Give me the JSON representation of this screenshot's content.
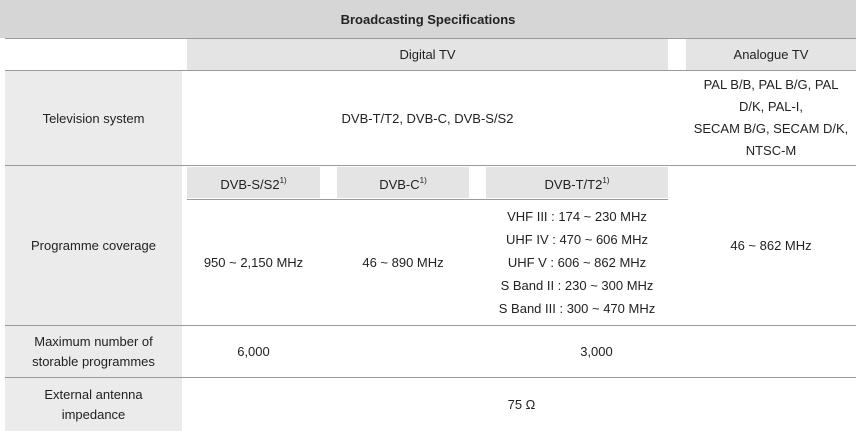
{
  "header": {
    "title": "Broadcasting Specifications"
  },
  "column_headers": [
    "Digital TV",
    "Analogue TV"
  ],
  "sub_headers": [
    {
      "name": "DVB-S/S2",
      "note": "1)"
    },
    {
      "name": "DVB-C",
      "note": "1)"
    },
    {
      "name": "DVB-T/T2",
      "note": "1)"
    }
  ],
  "rows": [
    {
      "label": "Television system",
      "digital": "DVB-T/T2, DVB-C, DVB-S/S2",
      "analogue": [
        "PAL B/B, PAL B/G, PAL",
        "D/K, PAL-I,",
        "SECAM B/G, SECAM D/K,",
        "NTSC-M"
      ]
    },
    {
      "label": "Programme coverage",
      "dvb_s_s2": "950 ~ 2,150 MHz",
      "dvb_c": "46 ~ 890 MHz",
      "dvb_t_t2": [
        "VHF III : 174 ~ 230 MHz",
        "UHF IV : 470 ~ 606 MHz",
        "UHF V : 606 ~ 862 MHz",
        "S Band II : 230 ~ 300 MHz",
        "S Band III : 300 ~ 470 MHz"
      ],
      "analogue": "46 ~ 862 MHz"
    },
    {
      "label": "Maximum number of storable programmes",
      "dvb_s_s2": "6,000",
      "others": "3,000"
    },
    {
      "label": "External antenna impedance",
      "value": "75 Ω"
    }
  ]
}
